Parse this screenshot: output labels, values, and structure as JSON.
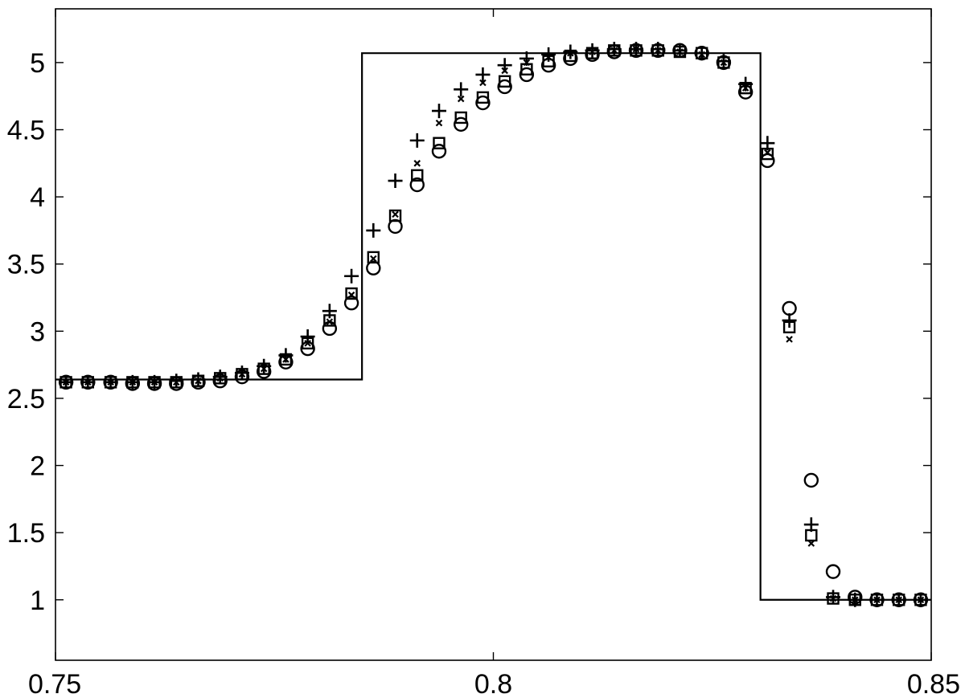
{
  "chart_data": {
    "type": "line",
    "title": "",
    "xlabel": "",
    "ylabel": "",
    "xlim": [
      0.75,
      0.85
    ],
    "ylim": [
      0.55,
      5.4
    ],
    "grid": false,
    "legend": "none",
    "xticks": [
      {
        "value": 0.75,
        "label": "0.75"
      },
      {
        "value": 0.8,
        "label": "0.8"
      },
      {
        "value": 0.85,
        "label": "0.85"
      }
    ],
    "yticks": [
      {
        "value": 1,
        "label": "1"
      },
      {
        "value": 1.5,
        "label": "1.5"
      },
      {
        "value": 2,
        "label": "2"
      },
      {
        "value": 2.5,
        "label": "2.5"
      },
      {
        "value": 3,
        "label": "3"
      },
      {
        "value": 3.5,
        "label": "3.5"
      },
      {
        "value": 4,
        "label": "4"
      },
      {
        "value": 4.5,
        "label": "4.5"
      },
      {
        "value": 5,
        "label": "5"
      }
    ],
    "x": [
      0.7512,
      0.7537,
      0.7563,
      0.7588,
      0.7613,
      0.7638,
      0.7663,
      0.7688,
      0.7713,
      0.7738,
      0.7763,
      0.7788,
      0.7813,
      0.7838,
      0.7863,
      0.7888,
      0.7913,
      0.7938,
      0.7963,
      0.7988,
      0.8013,
      0.8038,
      0.8063,
      0.8088,
      0.8113,
      0.8138,
      0.8163,
      0.8188,
      0.8213,
      0.8238,
      0.8263,
      0.8288,
      0.8313,
      0.8338,
      0.8363,
      0.8388,
      0.8413,
      0.8438,
      0.8463,
      0.8488
    ],
    "series": [
      {
        "marker": "line",
        "kind": "step",
        "x": [
          0.75,
          0.785,
          0.785,
          0.8305,
          0.8305,
          0.85
        ],
        "y": [
          2.64,
          2.64,
          5.07,
          5.07,
          1.0,
          1.0
        ]
      },
      {
        "marker": "plus",
        "y": [
          2.62,
          2.62,
          2.62,
          2.62,
          2.62,
          2.63,
          2.64,
          2.66,
          2.69,
          2.74,
          2.82,
          2.96,
          3.15,
          3.41,
          3.75,
          4.12,
          4.42,
          4.64,
          4.8,
          4.91,
          4.98,
          5.03,
          5.06,
          5.08,
          5.09,
          5.1,
          5.1,
          5.1,
          5.09,
          5.07,
          5.01,
          4.84,
          4.4,
          3.08,
          1.56,
          1.02,
          1.0,
          1.0,
          1.0,
          1.0
        ]
      },
      {
        "marker": "x",
        "y": [
          2.62,
          2.62,
          2.62,
          2.62,
          2.62,
          2.62,
          2.63,
          2.65,
          2.68,
          2.72,
          2.79,
          2.91,
          3.07,
          3.27,
          3.54,
          3.87,
          4.25,
          4.55,
          4.73,
          4.85,
          4.94,
          5.0,
          5.04,
          5.07,
          5.08,
          5.09,
          5.1,
          5.09,
          5.08,
          5.06,
          5.0,
          4.81,
          4.33,
          2.94,
          1.42,
          1.01,
          1.0,
          1.0,
          1.0,
          1.0
        ]
      },
      {
        "marker": "square",
        "y": [
          2.62,
          2.62,
          2.62,
          2.62,
          2.62,
          2.62,
          2.63,
          2.65,
          2.68,
          2.72,
          2.79,
          2.91,
          3.08,
          3.28,
          3.55,
          3.86,
          4.16,
          4.4,
          4.59,
          4.74,
          4.86,
          4.95,
          5.01,
          5.05,
          5.07,
          5.09,
          5.09,
          5.09,
          5.08,
          5.07,
          5.0,
          4.81,
          4.32,
          3.03,
          1.48,
          1.01,
          1.0,
          1.0,
          1.0,
          1.0
        ]
      },
      {
        "marker": "circle",
        "y": [
          2.62,
          2.62,
          2.62,
          2.61,
          2.61,
          2.61,
          2.62,
          2.63,
          2.66,
          2.7,
          2.77,
          2.87,
          3.02,
          3.21,
          3.47,
          3.78,
          4.09,
          4.34,
          4.54,
          4.7,
          4.82,
          4.91,
          4.98,
          5.03,
          5.06,
          5.08,
          5.09,
          5.09,
          5.09,
          5.07,
          5.0,
          4.78,
          4.27,
          3.17,
          1.89,
          1.21,
          1.02,
          1.0,
          1.0,
          1.0
        ]
      }
    ]
  }
}
